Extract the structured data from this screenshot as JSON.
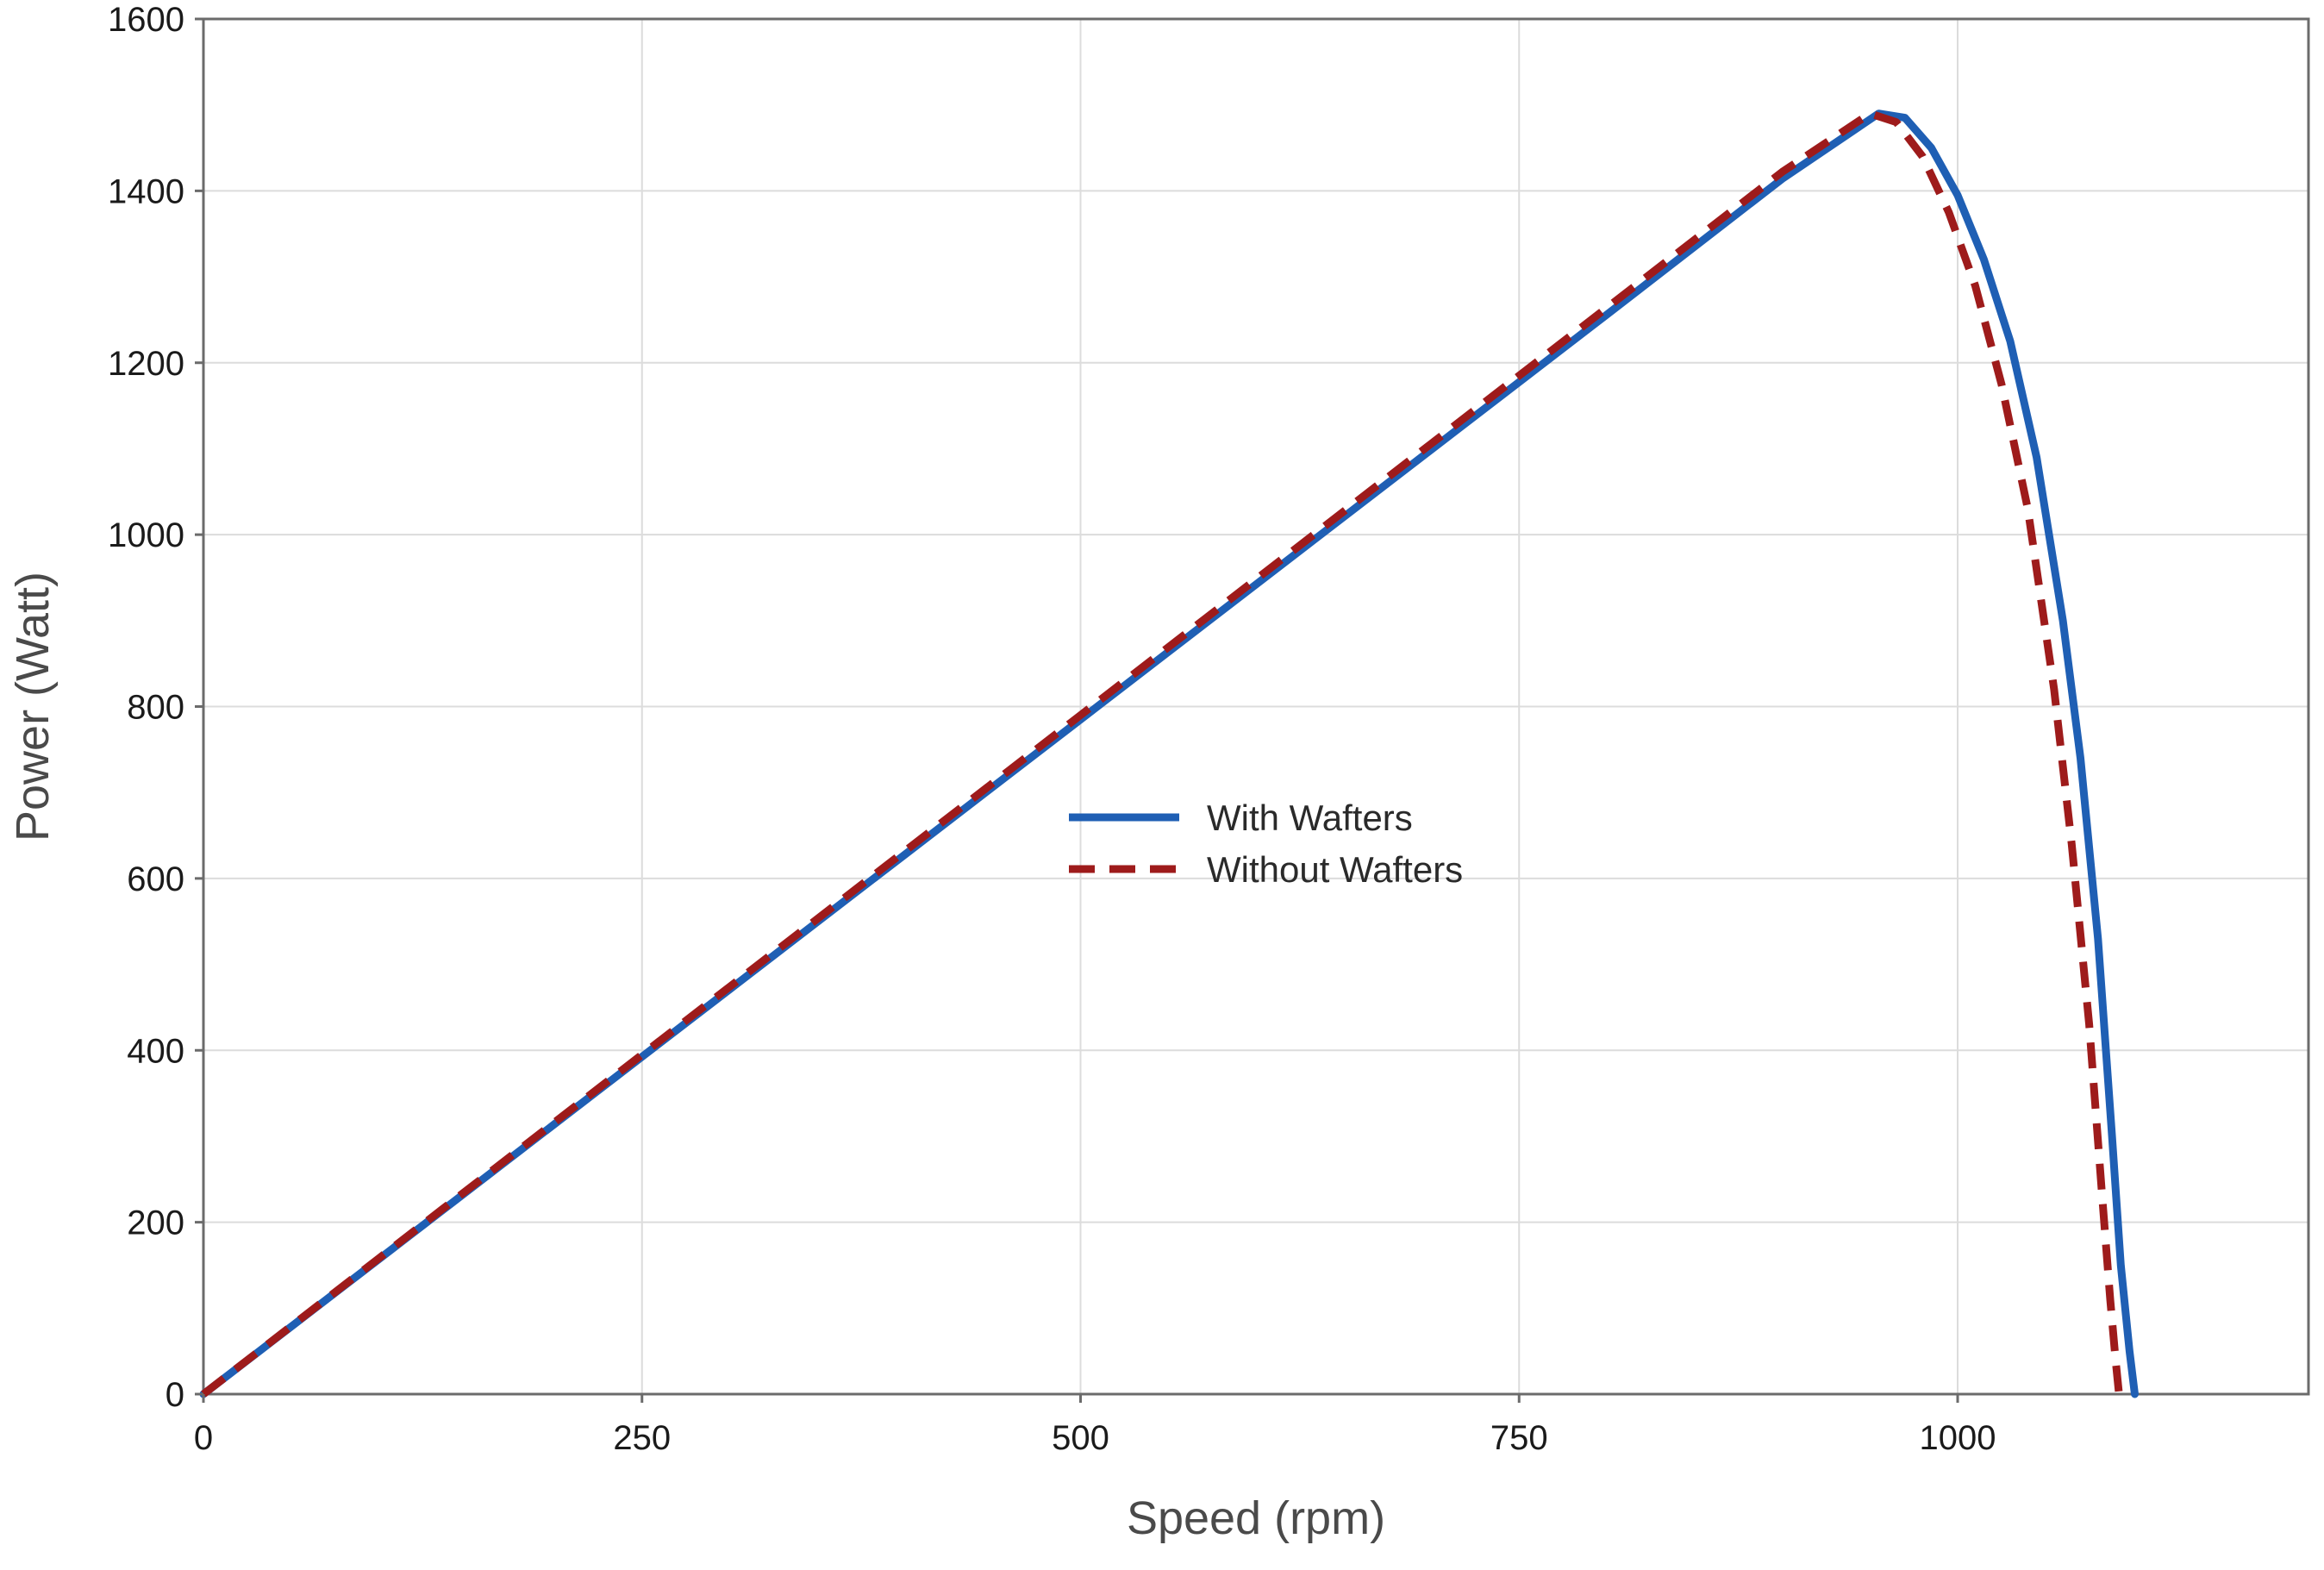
{
  "chart_data": {
    "type": "line",
    "title": "",
    "xlabel": "Speed (rpm)",
    "ylabel": "Power (Watt)",
    "xlim": [
      0,
      1200
    ],
    "ylim": [
      0,
      1600
    ],
    "xticks": [
      0,
      250,
      500,
      750,
      1000
    ],
    "yticks": [
      0,
      200,
      400,
      600,
      800,
      1000,
      1200,
      1400,
      1600
    ],
    "grid": true,
    "legend_position": "center",
    "series": [
      {
        "name": "With Wafters",
        "color": "#1f5fb4",
        "style": "solid",
        "x": [
          0,
          100,
          200,
          300,
          400,
          500,
          600,
          700,
          800,
          900,
          955,
          970,
          985,
          1000,
          1015,
          1030,
          1045,
          1060,
          1070,
          1080,
          1088,
          1093,
          1098,
          1101
        ],
        "y": [
          0,
          157,
          314,
          471,
          628,
          785,
          942,
          1099,
          1256,
          1414,
          1490,
          1485,
          1450,
          1395,
          1320,
          1225,
          1090,
          900,
          740,
          530,
          300,
          150,
          50,
          0
        ]
      },
      {
        "name": "Without Wafters",
        "color": "#9e1b1b",
        "style": "dashed",
        "x": [
          0,
          100,
          200,
          300,
          400,
          500,
          600,
          700,
          800,
          900,
          950,
          965,
          980,
          995,
          1010,
          1025,
          1040,
          1055,
          1065,
          1075,
          1082,
          1087,
          1090,
          1092
        ],
        "y": [
          0,
          158,
          316,
          474,
          632,
          790,
          948,
          1106,
          1264,
          1422,
          1490,
          1480,
          1440,
          1375,
          1290,
          1175,
          1030,
          820,
          640,
          430,
          240,
          110,
          40,
          0
        ]
      }
    ]
  }
}
